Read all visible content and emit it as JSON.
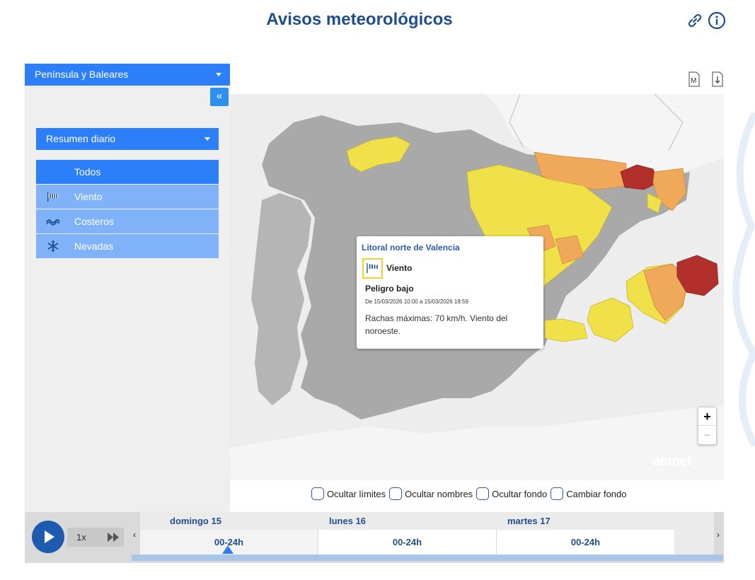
{
  "header": {
    "title": "Avisos meteorológicos",
    "link_icon": "link-icon",
    "info_icon": "info-icon"
  },
  "region_select": {
    "value": "Península y Baleares"
  },
  "panel": {
    "collapse_label": "«",
    "summary_select": {
      "value": "Resumen diario"
    },
    "categories": [
      {
        "label": "Todos",
        "icon": "",
        "active": true
      },
      {
        "label": "Viento",
        "icon": "wind-sock-icon",
        "active": false
      },
      {
        "label": "Costeros",
        "icon": "waves-icon",
        "active": false
      },
      {
        "label": "Nevadas",
        "icon": "snowflake-icon",
        "active": false
      }
    ]
  },
  "map": {
    "tools": [
      "map-export-icon",
      "download-icon"
    ],
    "popup": {
      "title": "Litoral norte de Valencia",
      "hazard": "Viento",
      "level": "Peligro bajo",
      "dates": "De 15/03/2026 10:00 a 15/03/2026 18:59",
      "description": "Rachas máximas: 70 km/h. Viento del noroeste."
    },
    "zoom_in": "+",
    "zoom_out": "−",
    "logo": "aemet",
    "colors": {
      "land_no_warning": "#a9a9a9",
      "yellow": "#f0e14a",
      "orange": "#f0a85a",
      "red": "#b2302c",
      "sea": "#ededed"
    }
  },
  "options": [
    {
      "label": "Ocultar límites",
      "checked": false
    },
    {
      "label": "Ocultar nombres",
      "checked": false
    },
    {
      "label": "Ocultar fondo",
      "checked": false
    },
    {
      "label": "Cambiar fondo",
      "checked": false
    }
  ],
  "timeline": {
    "speed": "1x",
    "days": [
      {
        "name": "domingo 15",
        "slot": "00-24h",
        "selected": true
      },
      {
        "name": "lunes 16",
        "slot": "00-24h",
        "selected": false
      },
      {
        "name": "martes 17",
        "slot": "00-24h",
        "selected": false
      }
    ],
    "prev_label": "‹",
    "next_label": "›"
  }
}
